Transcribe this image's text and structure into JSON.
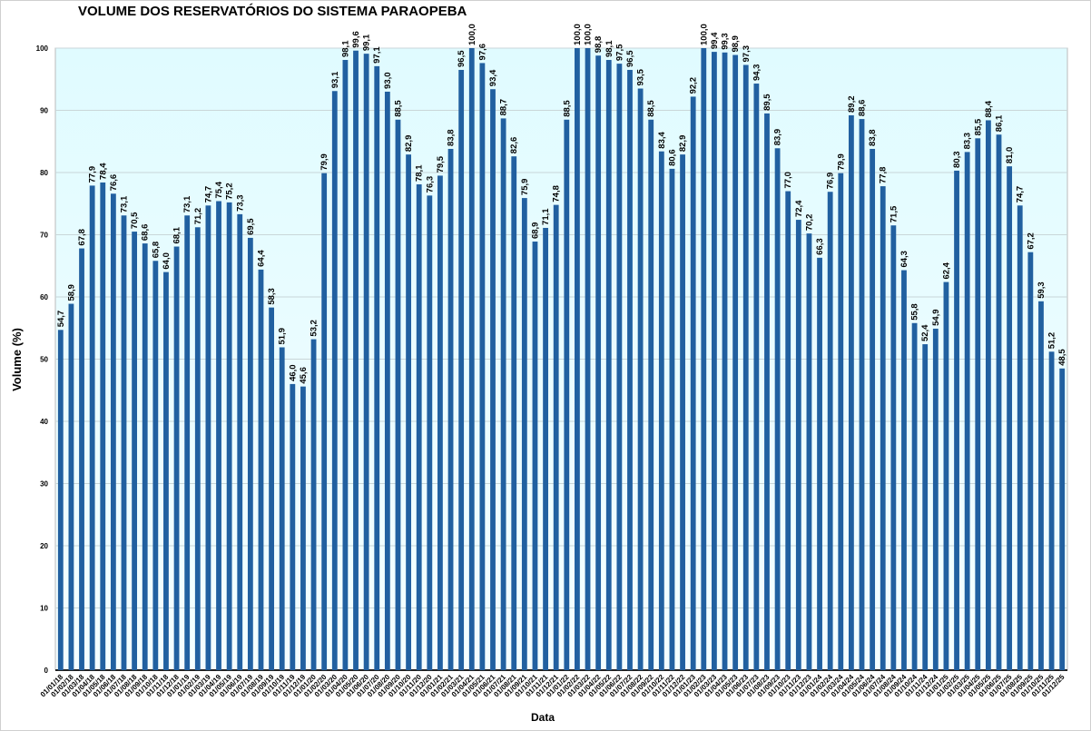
{
  "chart_data": {
    "type": "bar",
    "title": "VOLUME DOS RESERVATÓRIOS DO SISTEMA PARAOPEBA",
    "xlabel": "Data",
    "ylabel": "Volume (%)",
    "ylim": [
      0,
      100
    ],
    "yticks": [
      0,
      10,
      20,
      30,
      40,
      50,
      60,
      70,
      80,
      90,
      100
    ],
    "grid": true,
    "bar_color": "#2160a0",
    "plot_background": "#e4fcff",
    "categories": [
      "01/01/18",
      "01/02/18",
      "01/03/18",
      "01/04/18",
      "01/05/18",
      "01/06/18",
      "01/07/18",
      "01/08/18",
      "01/09/18",
      "01/10/18",
      "01/11/18",
      "01/12/18",
      "01/01/19",
      "01/02/19",
      "01/03/19",
      "01/04/19",
      "01/05/19",
      "01/06/19",
      "01/07/19",
      "01/08/19",
      "01/09/19",
      "01/10/19",
      "01/11/19",
      "01/12/19",
      "01/01/20",
      "01/02/20",
      "01/03/20",
      "01/04/20",
      "01/05/20",
      "01/06/20",
      "01/07/20",
      "01/08/20",
      "01/09/20",
      "01/10/20",
      "01/11/20",
      "01/12/20",
      "01/01/21",
      "01/02/21",
      "01/03/21",
      "01/04/21",
      "01/05/21",
      "01/06/21",
      "01/07/21",
      "01/08/21",
      "01/09/21",
      "01/10/21",
      "01/11/21",
      "01/12/21",
      "01/01/22",
      "01/02/22",
      "01/03/22",
      "01/04/22",
      "01/05/22",
      "01/06/22",
      "01/07/22",
      "01/08/22",
      "01/09/22",
      "01/10/22",
      "01/11/22",
      "01/12/22",
      "01/01/23",
      "01/02/23",
      "01/03/23",
      "01/04/23",
      "01/05/23",
      "01/06/23",
      "01/07/23",
      "01/08/23",
      "01/09/23",
      "01/10/23",
      "01/11/23",
      "01/12/23",
      "01/01/24",
      "01/02/24",
      "01/03/24",
      "01/04/24",
      "01/05/24",
      "01/06/24",
      "01/07/24",
      "01/08/24",
      "01/09/24",
      "01/10/24",
      "01/11/24",
      "01/12/24",
      "01/01/25",
      "01/02/25",
      "01/03/25",
      "01/04/25",
      "01/05/25",
      "01/06/25",
      "01/07/25",
      "01/08/25",
      "01/09/25",
      "01/10/25",
      "01/11/25",
      "01/12/25"
    ],
    "values": [
      54.7,
      58.9,
      67.8,
      77.9,
      78.4,
      76.6,
      73.1,
      70.5,
      68.6,
      65.8,
      64.0,
      68.1,
      73.1,
      71.2,
      74.7,
      75.4,
      75.2,
      73.3,
      69.5,
      64.4,
      58.3,
      51.9,
      46.0,
      45.6,
      53.2,
      79.9,
      93.1,
      98.1,
      99.6,
      99.1,
      97.1,
      93.0,
      88.5,
      82.9,
      78.1,
      76.3,
      79.5,
      83.8,
      96.5,
      100.0,
      97.6,
      93.4,
      88.7,
      82.6,
      75.9,
      68.9,
      71.1,
      74.8,
      88.5,
      100.0,
      100.0,
      98.8,
      98.1,
      97.5,
      96.5,
      93.5,
      88.5,
      83.4,
      80.6,
      82.9,
      92.2,
      100.0,
      99.4,
      99.3,
      98.9,
      97.3,
      94.3,
      89.5,
      83.9,
      77.0,
      72.4,
      70.2,
      66.3,
      76.9,
      79.9,
      89.2,
      88.6,
      83.8,
      77.8,
      71.5,
      64.3,
      55.8,
      52.4,
      54.9,
      62.4,
      80.3,
      83.3,
      85.5,
      88.4,
      86.1,
      81.0,
      74.7,
      67.2,
      59.3,
      51.2,
      48.5
    ]
  }
}
